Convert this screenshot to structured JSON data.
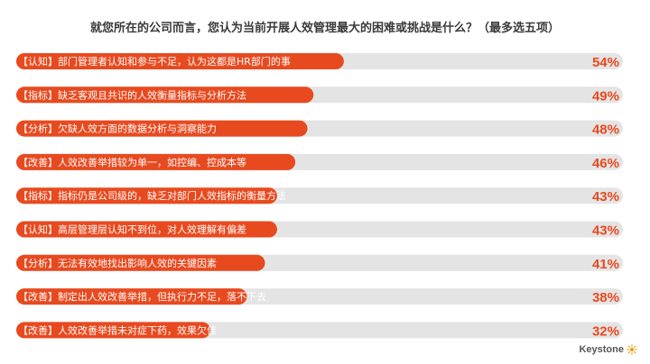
{
  "colors": {
    "bar": "#e84a1f",
    "track": "#e4e4e4",
    "value": "#e84a1f",
    "label": "#ffffff"
  },
  "brand": {
    "name": "Keystone",
    "icon": "sun-burst-icon"
  },
  "chart_data": {
    "type": "bar",
    "orientation": "horizontal",
    "title": "就您所在的公司而言，您认为当前开展人效管理最大的困难或挑战是什么？（最多选五项）",
    "xlim": [
      0,
      100
    ],
    "value_suffix": "%",
    "categories": [
      "【认知】部门管理者认知和参与不足，认为这都是HR部门的事",
      "【指标】缺乏客观且共识的人效衡量指标与分析方法",
      "【分析】欠缺人效方面的数据分析与洞察能力",
      "【改善】人效改善举措较为单一，如控编、控成本等",
      "【指标】指标仍是公司级的，缺乏对部门人效指标的衡量方法",
      "【认知】高层管理层认知不到位，对人效理解有偏差",
      "【分析】无法有效地找出影响人效的关键因素",
      "【改善】制定出人效改善举措，但执行力不足，落不下去",
      "【改善】人效改善举措未对症下药，效果欠佳"
    ],
    "values": [
      54,
      49,
      48,
      46,
      43,
      43,
      41,
      38,
      32
    ],
    "value_labels": [
      "54%",
      "49%",
      "48%",
      "46%",
      "43%",
      "43%",
      "41%",
      "38%",
      "32%"
    ]
  }
}
